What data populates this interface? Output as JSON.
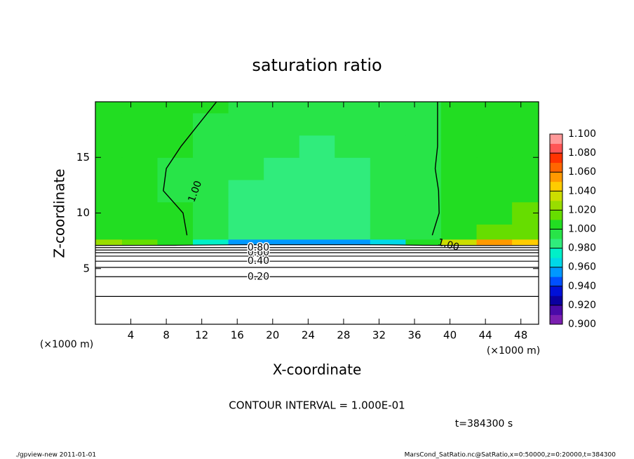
{
  "chart_data": {
    "type": "contour",
    "title": "saturation ratio",
    "xlabel": "X-coordinate",
    "ylabel": "Z-coordinate",
    "x_unit": "(×1000 m)",
    "y_unit": "(×1000 m)",
    "contour_interval_text": "CONTOUR INTERVAL = 1.000E-01",
    "time_text": "t=384300 s",
    "footer_left": "./gpview-new  2011-01-01",
    "footer_right": "MarsCond_SatRatio.nc@SatRatio,x=0:50000,z=0:20000,t=384300",
    "xlim": [
      0,
      50
    ],
    "ylim": [
      0,
      20
    ],
    "xticks": [
      4,
      8,
      12,
      16,
      20,
      24,
      28,
      32,
      36,
      40,
      44,
      48
    ],
    "yticks": [
      5,
      10,
      15
    ],
    "x": [
      1,
      5,
      9,
      13,
      17,
      21,
      25,
      29,
      33,
      37,
      41,
      45,
      49
    ],
    "y": [
      0,
      1,
      2,
      3,
      4,
      5,
      6,
      6.5,
      7,
      7.3,
      8,
      10,
      12,
      14,
      16,
      18,
      20
    ],
    "values": [
      [
        0.05,
        0.05,
        0.05,
        0.05,
        0.05,
        0.05,
        0.05,
        0.05,
        0.05,
        0.05,
        0.05,
        0.05,
        0.05
      ],
      [
        0.06,
        0.06,
        0.06,
        0.06,
        0.06,
        0.06,
        0.06,
        0.06,
        0.06,
        0.06,
        0.06,
        0.06,
        0.06
      ],
      [
        0.08,
        0.08,
        0.08,
        0.08,
        0.08,
        0.08,
        0.08,
        0.08,
        0.08,
        0.08,
        0.08,
        0.08,
        0.08
      ],
      [
        0.12,
        0.12,
        0.12,
        0.12,
        0.12,
        0.12,
        0.12,
        0.12,
        0.12,
        0.12,
        0.12,
        0.12,
        0.12
      ],
      [
        0.17,
        0.17,
        0.17,
        0.17,
        0.17,
        0.17,
        0.17,
        0.17,
        0.17,
        0.17,
        0.17,
        0.17,
        0.17
      ],
      [
        0.28,
        0.28,
        0.28,
        0.28,
        0.28,
        0.28,
        0.28,
        0.28,
        0.28,
        0.28,
        0.28,
        0.28,
        0.28
      ],
      [
        0.46,
        0.46,
        0.46,
        0.46,
        0.46,
        0.46,
        0.46,
        0.46,
        0.46,
        0.46,
        0.46,
        0.46,
        0.46
      ],
      [
        0.62,
        0.62,
        0.62,
        0.62,
        0.62,
        0.62,
        0.62,
        0.62,
        0.62,
        0.62,
        0.62,
        0.62,
        0.62
      ],
      [
        0.85,
        0.85,
        0.85,
        0.85,
        0.85,
        0.85,
        0.85,
        0.85,
        0.85,
        0.85,
        0.85,
        0.85,
        0.85
      ],
      [
        1.02,
        1.01,
        1.0,
        0.97,
        0.95,
        0.95,
        0.95,
        0.95,
        0.96,
        1.0,
        1.03,
        1.05,
        1.04
      ],
      [
        1.008,
        1.006,
        1.004,
        0.992,
        0.988,
        0.986,
        0.985,
        0.986,
        0.99,
        0.998,
        1.006,
        1.01,
        1.012
      ],
      [
        1.006,
        1.004,
        1.002,
        0.993,
        0.988,
        0.985,
        0.984,
        0.985,
        0.99,
        0.996,
        1.005,
        1.008,
        1.01
      ],
      [
        1.006,
        1.004,
        0.998,
        0.993,
        0.989,
        0.986,
        0.985,
        0.986,
        0.99,
        0.997,
        1.004,
        1.007,
        1.008
      ],
      [
        1.006,
        1.003,
        0.999,
        0.994,
        0.99,
        0.988,
        0.987,
        0.988,
        0.991,
        0.998,
        1.004,
        1.006,
        1.007
      ],
      [
        1.006,
        1.004,
        1.001,
        0.995,
        0.992,
        0.99,
        0.989,
        0.99,
        0.992,
        0.998,
        1.003,
        1.005,
        1.006
      ],
      [
        1.006,
        1.004,
        1.002,
        0.999,
        0.993,
        0.991,
        0.99,
        0.991,
        0.993,
        0.998,
        1.003,
        1.005,
        1.006
      ],
      [
        1.006,
        1.005,
        1.003,
        1.001,
        0.995,
        0.992,
        0.991,
        0.992,
        0.994,
        0.998,
        1.003,
        1.005,
        1.006
      ]
    ],
    "contour_levels": [
      0.1,
      0.2,
      0.3,
      0.4,
      0.5,
      0.6,
      0.7,
      0.8,
      0.9,
      1.0
    ],
    "contour_labels": [
      {
        "value": 0.2,
        "label": "0.20"
      },
      {
        "value": 0.4,
        "label": "0.40"
      },
      {
        "value": 0.6,
        "label": "0.60"
      },
      {
        "value": 0.8,
        "label": "0.80"
      },
      {
        "value": 1.0,
        "label": "1.00"
      }
    ],
    "colorbar_lim": [
      0.9,
      1.1
    ],
    "colorbar_step": 0.01,
    "colorbar_colors": [
      "#7a1fb0",
      "#4a0aa8",
      "#0a00a0",
      "#0010d8",
      "#0050ff",
      "#0098ff",
      "#00d8e8",
      "#00f0c8",
      "#30ec7c",
      "#28e448",
      "#22dd22",
      "#66dd00",
      "#99dd00",
      "#ccdd00",
      "#ffcc00",
      "#ff9900",
      "#ff6600",
      "#ff3300",
      "#ff5555",
      "#ff9999"
    ],
    "colorbar_ticks": [
      {
        "value": 0.9,
        "label": "0.900"
      },
      {
        "value": 0.92,
        "label": "0.920"
      },
      {
        "value": 0.94,
        "label": "0.940"
      },
      {
        "value": 0.96,
        "label": "0.960"
      },
      {
        "value": 0.98,
        "label": "0.980"
      },
      {
        "value": 1.0,
        "label": "1.000"
      },
      {
        "value": 1.02,
        "label": "1.020"
      },
      {
        "value": 1.04,
        "label": "1.040"
      },
      {
        "value": 1.06,
        "label": "1.060"
      },
      {
        "value": 1.08,
        "label": "1.080"
      },
      {
        "value": 1.1,
        "label": "1.100"
      }
    ]
  }
}
